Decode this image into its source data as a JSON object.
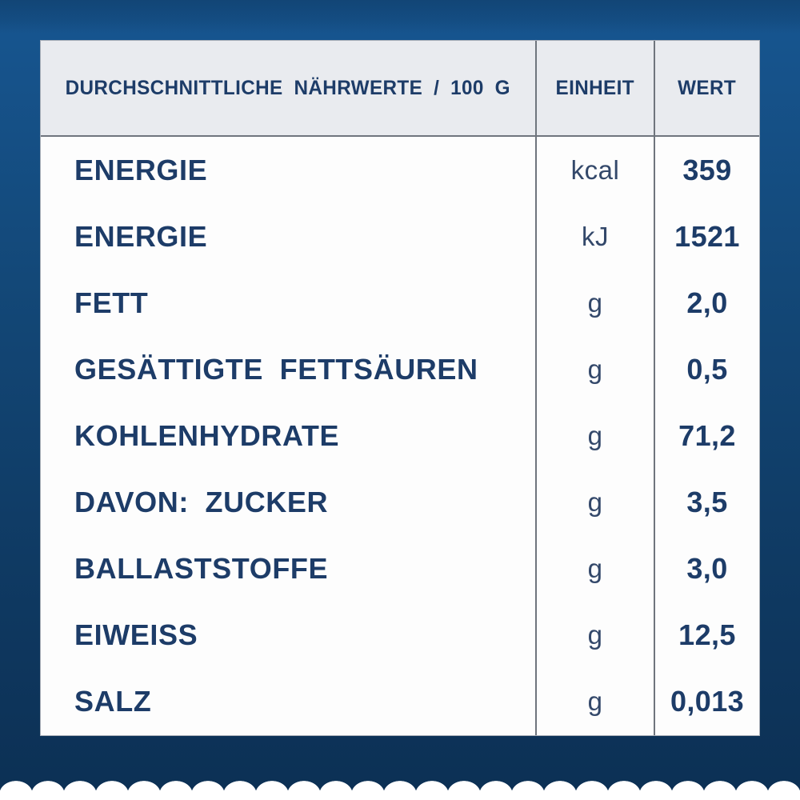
{
  "table": {
    "header": {
      "nutrients": "DURCHSCHNITTLICHE NÄHRWERTE / 100 G",
      "unit": "EINHEIT",
      "value": "WERT"
    },
    "rows": [
      {
        "label": "ENERGIE",
        "unit": "kcal",
        "value": "359"
      },
      {
        "label": "ENERGIE",
        "unit": "kJ",
        "value": "1521"
      },
      {
        "label": "FETT",
        "unit": "g",
        "value": "2,0"
      },
      {
        "label": "GESÄTTIGTE FETTSÄUREN",
        "unit": "g",
        "value": "0,5"
      },
      {
        "label": "KOHLENHYDRATE",
        "unit": "g",
        "value": "71,2"
      },
      {
        "label": "DAVON: ZUCKER",
        "unit": "g",
        "value": "3,5"
      },
      {
        "label": "BALLASTSTOFFE",
        "unit": "g",
        "value": "3,0"
      },
      {
        "label": "EIWEISS",
        "unit": "g",
        "value": "12,5"
      },
      {
        "label": "SALZ",
        "unit": "g",
        "value": "0,013"
      }
    ]
  },
  "colors": {
    "navy": "#1d3c68",
    "bg_top": "#175691",
    "bg_bottom": "#0c3054",
    "header_bg": "#e9ebef",
    "grid_line": "#6f757d"
  }
}
